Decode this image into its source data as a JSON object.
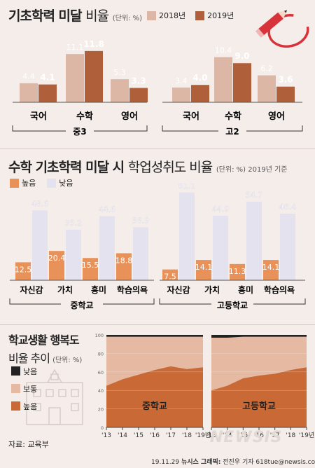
{
  "section1": {
    "title_bold": "기초학력 미달",
    "title_light": "비율",
    "unit": "(단위: %)",
    "legend": [
      {
        "label": "2018년",
        "color": "#ddb7a5"
      },
      {
        "label": "2019년",
        "color": "#b05f3b"
      }
    ]
  },
  "section2": {
    "title_bold": "수학 기초학력 미달 시",
    "title_light": "학업성취도 비율",
    "unit": "(단위: %) 2019년 기준",
    "legend": [
      {
        "label": "높음",
        "color": "#e8925a"
      },
      {
        "label": "낮음",
        "color": "#e4e2ee"
      }
    ]
  },
  "section3": {
    "title_bold": "학교생활 행복도",
    "title_light": "비율 추이",
    "unit": "(단위: %)",
    "legend": [
      {
        "label": "낮음",
        "color": "#222222"
      },
      {
        "label": "보통",
        "color": "#e6b9a3"
      },
      {
        "label": "높음",
        "color": "#c96a36"
      }
    ]
  },
  "footer": {
    "source": "자료: 교육부",
    "credit_date": "19.11.29",
    "credit_org": "뉴시스 그래픽:",
    "credit_author": "전진우 기자 618tue@newsis.com",
    "watermark": "NEWSIS"
  },
  "chart_data": [
    {
      "type": "bar",
      "group": "중3",
      "categories": [
        "국어",
        "수학",
        "영어"
      ],
      "series": [
        {
          "name": "2018년",
          "values": [
            4.4,
            11.1,
            5.3
          ]
        },
        {
          "name": "2019년",
          "values": [
            4.1,
            11.8,
            3.3
          ]
        }
      ]
    },
    {
      "type": "bar",
      "group": "고2",
      "categories": [
        "국어",
        "수학",
        "영어"
      ],
      "series": [
        {
          "name": "2018년",
          "values": [
            3.4,
            10.4,
            6.2
          ]
        },
        {
          "name": "2019년",
          "values": [
            4.0,
            9.0,
            3.6
          ]
        }
      ]
    },
    {
      "type": "bar",
      "group": "중학교",
      "categories": [
        "자신감",
        "가치",
        "흥미",
        "학습의욕"
      ],
      "series": [
        {
          "name": "높음",
          "values": [
            12.5,
            20.4,
            15.5,
            18.8
          ]
        },
        {
          "name": "낮음",
          "values": [
            48.6,
            35.2,
            44.6,
            36.9
          ]
        }
      ]
    },
    {
      "type": "bar",
      "group": "고등학교",
      "categories": [
        "자신감",
        "가치",
        "흥미",
        "학습의욕"
      ],
      "series": [
        {
          "name": "높음",
          "values": [
            7.5,
            14.1,
            11.3,
            14.1
          ]
        },
        {
          "name": "낮음",
          "values": [
            61.1,
            44.9,
            54.7,
            46.4
          ]
        }
      ]
    },
    {
      "type": "area",
      "group": "중학교",
      "x": [
        "'13",
        "'14",
        "'15",
        "'16",
        "'17",
        "'18",
        "'19년"
      ],
      "y_ticks": [
        "0",
        "20",
        "40",
        "60",
        "80",
        "100"
      ],
      "ylim": [
        0,
        100
      ],
      "series": [
        {
          "name": "높음",
          "values": [
            45,
            52,
            57,
            62,
            66,
            63,
            65
          ]
        },
        {
          "name": "보통",
          "values": [
            53,
            46,
            41,
            36,
            32,
            35,
            33
          ]
        },
        {
          "name": "낮음",
          "values": [
            2,
            2,
            2,
            2,
            2,
            2,
            2
          ]
        }
      ]
    },
    {
      "type": "area",
      "group": "고등학교",
      "x": [
        "'13",
        "'14",
        "'15",
        "'16",
        "'17",
        "'18",
        "'19년"
      ],
      "ylim": [
        0,
        100
      ],
      "series": [
        {
          "name": "높음",
          "values": [
            40,
            45,
            53,
            56,
            58,
            62,
            65
          ]
        },
        {
          "name": "보통",
          "values": [
            57,
            52,
            45,
            42,
            40,
            36,
            33
          ]
        },
        {
          "name": "낮음",
          "values": [
            3,
            3,
            2,
            2,
            2,
            2,
            2
          ]
        }
      ]
    }
  ]
}
